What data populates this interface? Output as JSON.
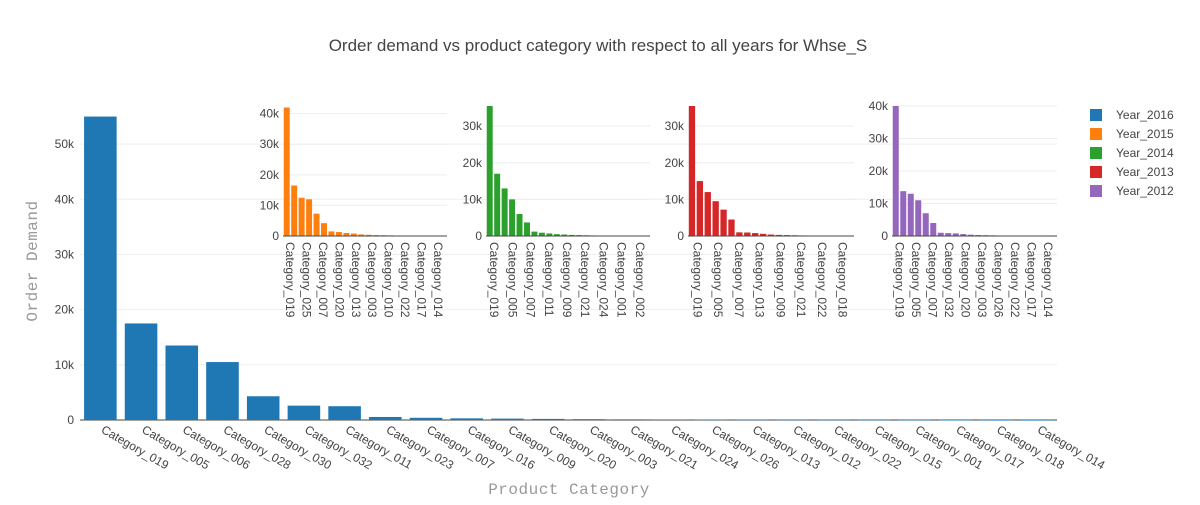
{
  "chart_data": {
    "type": "bar",
    "title": "Order demand vs product category with respect to all years for Whse_S",
    "xlabel": "Product Category",
    "ylabel": "Order Demand",
    "legend_position": "right",
    "main": {
      "series_name": "Year_2016",
      "color": "#1f77b4",
      "categories": [
        "Category_019",
        "Category_005",
        "Category_006",
        "Category_028",
        "Category_030",
        "Category_032",
        "Category_011",
        "Category_023",
        "Category_007",
        "Category_016",
        "Category_009",
        "Category_020",
        "Category_003",
        "Category_021",
        "Category_024",
        "Category_026",
        "Category_013",
        "Category_012",
        "Category_022",
        "Category_015",
        "Category_001",
        "Category_017",
        "Category_018",
        "Category_014"
      ],
      "values": [
        55000,
        17500,
        13500,
        10500,
        4300,
        2600,
        2500,
        550,
        400,
        300,
        250,
        200,
        150,
        120,
        100,
        80,
        70,
        60,
        50,
        40,
        30,
        20,
        15,
        10
      ],
      "ylim": [
        0,
        58000
      ],
      "yticks": [
        0,
        10000,
        20000,
        30000,
        40000,
        50000
      ],
      "ytick_labels": [
        "0",
        "10k",
        "20k",
        "30k",
        "40k",
        "50k"
      ]
    },
    "insets": [
      {
        "series_name": "Year_2015",
        "color": "#ff7f0e",
        "values": [
          42000,
          16500,
          12500,
          12000,
          7300,
          4200,
          1500,
          1300,
          1000,
          800,
          500,
          400,
          300,
          250,
          200,
          150,
          120,
          100,
          80,
          60,
          50,
          40
        ],
        "tick_labels": [
          "Category_019",
          "Category_025",
          "Category_007",
          "Category_020",
          "Category_013",
          "Category_003",
          "Category_010",
          "Category_022",
          "Category_017",
          "Category_014"
        ],
        "ylim": [
          0,
          42500
        ],
        "yticks": [
          0,
          10000,
          20000,
          30000,
          40000
        ],
        "ytick_labels": [
          "0",
          "10k",
          "20k",
          "30k",
          "40k"
        ]
      },
      {
        "series_name": "Year_2014",
        "color": "#2ca02c",
        "values": [
          35500,
          17000,
          13000,
          10000,
          6000,
          3700,
          1200,
          900,
          700,
          500,
          400,
          300,
          250,
          200,
          150,
          120,
          100,
          80,
          60,
          50,
          40,
          30
        ],
        "tick_labels": [
          "Category_019",
          "Category_005",
          "Category_007",
          "Category_011",
          "Category_009",
          "Category_021",
          "Category_024",
          "Category_001",
          "Category_002"
        ],
        "ylim": [
          0,
          35500
        ],
        "yticks": [
          0,
          10000,
          20000,
          30000
        ],
        "ytick_labels": [
          "0",
          "10k",
          "20k",
          "30k"
        ]
      },
      {
        "series_name": "Year_2013",
        "color": "#d62728",
        "values": [
          35500,
          15000,
          12000,
          9500,
          7200,
          4500,
          1000,
          950,
          800,
          600,
          400,
          300,
          250,
          200,
          150,
          100,
          80,
          60,
          50,
          40,
          30
        ],
        "tick_labels": [
          "Category_019",
          "Category_005",
          "Category_007",
          "Category_013",
          "Category_009",
          "Category_021",
          "Category_022",
          "Category_018"
        ],
        "ylim": [
          0,
          35500
        ],
        "yticks": [
          0,
          10000,
          20000,
          30000
        ],
        "ytick_labels": [
          "0",
          "10k",
          "20k",
          "30k"
        ]
      },
      {
        "series_name": "Year_2012",
        "color": "#9467bd",
        "values": [
          40000,
          13800,
          13000,
          11000,
          7000,
          4000,
          1000,
          900,
          800,
          600,
          400,
          300,
          250,
          200,
          150,
          100,
          80,
          60,
          50,
          40,
          30,
          20
        ],
        "tick_labels": [
          "Category_019",
          "Category_005",
          "Category_007",
          "Category_032",
          "Category_020",
          "Category_003",
          "Category_026",
          "Category_022",
          "Category_017",
          "Category_014"
        ],
        "ylim": [
          0,
          40000
        ],
        "yticks": [
          0,
          10000,
          20000,
          30000,
          40000
        ],
        "ytick_labels": [
          "0",
          "10k",
          "20k",
          "30k",
          "40k"
        ]
      }
    ],
    "legend": [
      {
        "name": "Year_2016",
        "color": "#1f77b4"
      },
      {
        "name": "Year_2015",
        "color": "#ff7f0e"
      },
      {
        "name": "Year_2014",
        "color": "#2ca02c"
      },
      {
        "name": "Year_2013",
        "color": "#d62728"
      },
      {
        "name": "Year_2012",
        "color": "#9467bd"
      }
    ]
  }
}
